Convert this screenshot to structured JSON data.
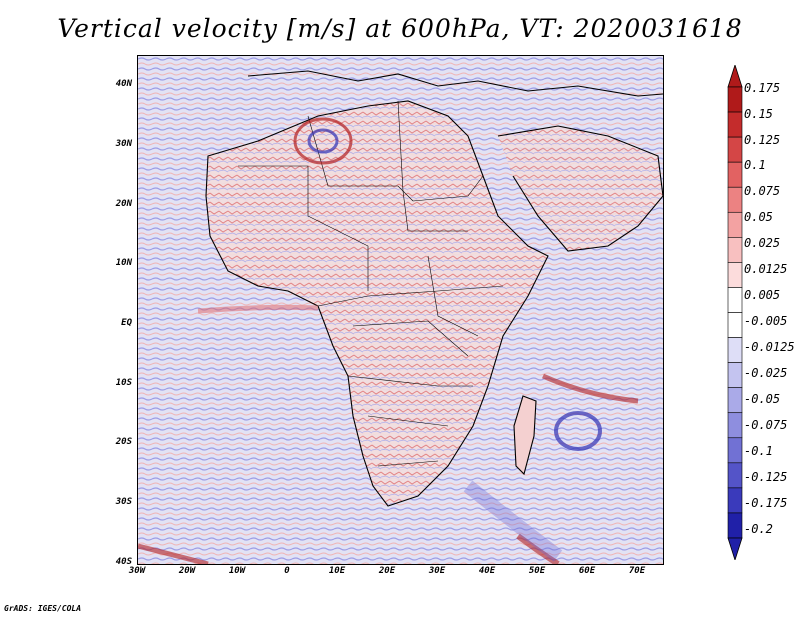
{
  "title": "Vertical velocity [m/s] at 600hPa, VT: 2020031618",
  "credit": "GrADS: IGES/COLA",
  "map": {
    "lat_labels": [
      "40N",
      "30N",
      "20N",
      "10N",
      "EQ",
      "10S",
      "20S",
      "30S",
      "40S"
    ],
    "lon_labels": [
      "30W",
      "20W",
      "10W",
      "0",
      "10E",
      "20E",
      "30E",
      "40E",
      "50E",
      "60E",
      "70E"
    ],
    "lat_range": [
      -40,
      45
    ],
    "lon_range": [
      -30,
      75
    ],
    "field_colors": {
      "background": "#e9e9f5",
      "negative": "#8c8ce6",
      "positive": "#ec8f8f",
      "strong_positive": "#b31f1f",
      "strong_negative": "#3232b4",
      "land_edge": "#000000"
    }
  },
  "colorbar": {
    "labels": [
      "0.175",
      "0.15",
      "0.125",
      "0.1",
      "0.075",
      "0.05",
      "0.025",
      "0.0125",
      "0.005",
      "-0.005",
      "-0.0125",
      "-0.025",
      "-0.05",
      "-0.075",
      "-0.1",
      "-0.125",
      "-0.175",
      "-0.2"
    ],
    "colors": [
      "#b01a1a",
      "#c42c2c",
      "#d44646",
      "#e26262",
      "#ec8282",
      "#f3a2a2",
      "#f8c0c0",
      "#fcdcdc",
      "#ffffff",
      "#ffffff",
      "#dedef7",
      "#c4c4f0",
      "#aaaae8",
      "#8e8edf",
      "#7171d4",
      "#5454c8",
      "#3a3abb",
      "#2020a8"
    ]
  }
}
